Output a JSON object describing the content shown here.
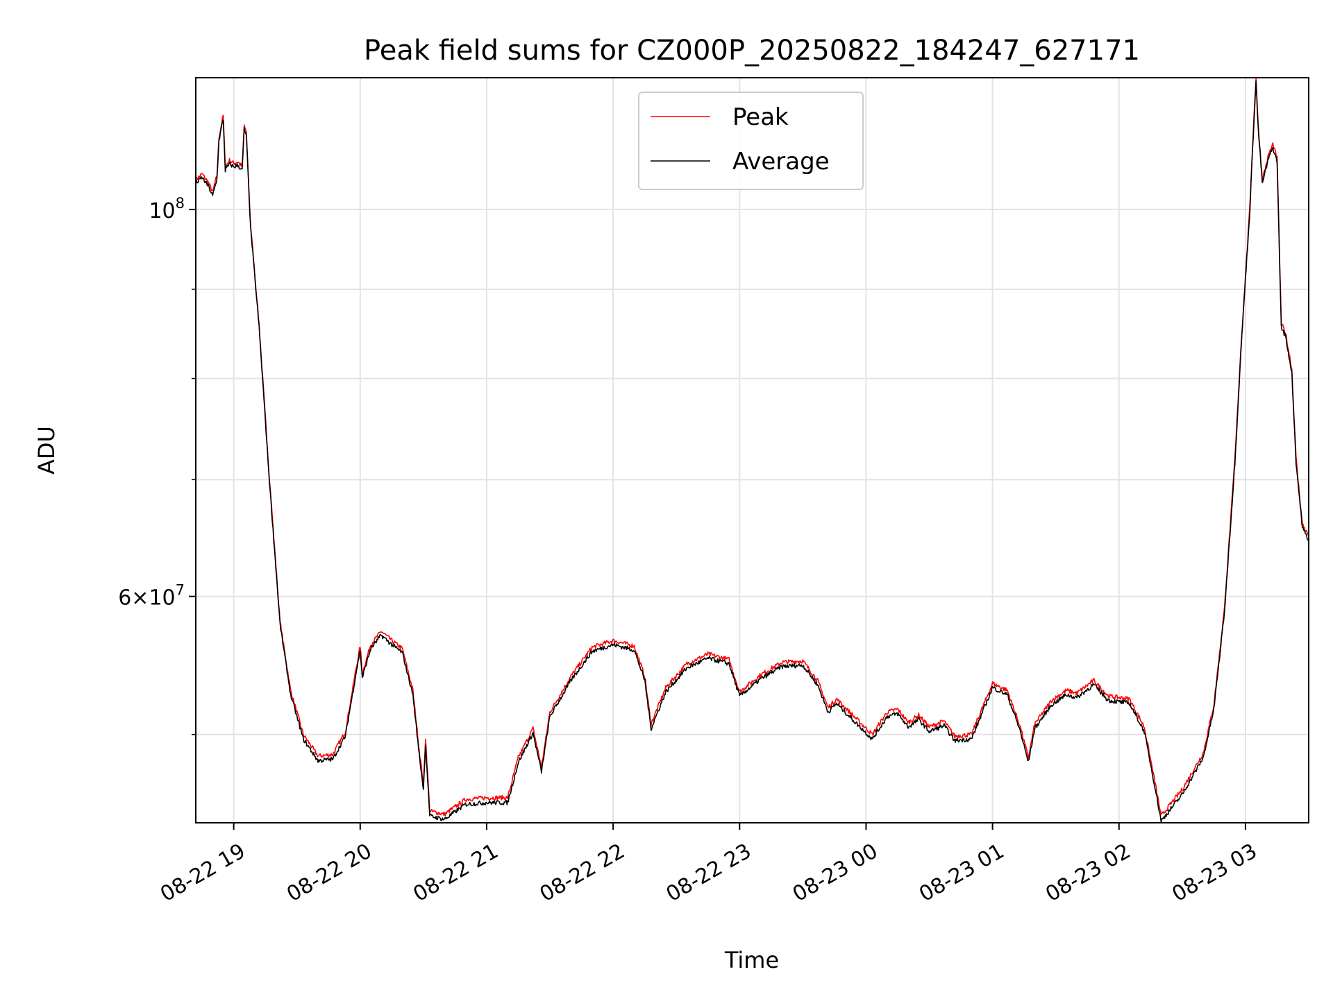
{
  "chart_data": {
    "type": "line",
    "title": "Peak field sums for CZ000P_20250822_184247_627171",
    "xlabel": "Time",
    "ylabel": "ADU",
    "y_scale": "log",
    "x_range": [
      "2025-08-22 18:42",
      "2025-08-23 03:30"
    ],
    "ylim": [
      44500000,
      119000000
    ],
    "x_ticks": [
      "08-22 19",
      "08-22 20",
      "08-22 21",
      "08-22 22",
      "08-22 23",
      "08-23 00",
      "08-23 01",
      "08-23 02",
      "08-23 03"
    ],
    "y_major_ticks": [
      {
        "value": 100000000,
        "label": "10^8"
      },
      {
        "value": 60000000,
        "label": "6×10^7"
      }
    ],
    "y_minor_ticks": [
      90000000,
      80000000,
      70000000,
      50000000
    ],
    "grid": true,
    "legend_position": "top-center",
    "series": [
      {
        "name": "Peak",
        "color": "#ff0000",
        "points": [
          [
            "2025-08-22 18:42",
            104000000
          ],
          [
            "2025-08-22 18:45",
            104800000
          ],
          [
            "2025-08-22 18:48",
            103600000
          ],
          [
            "2025-08-22 18:50",
            102300000
          ],
          [
            "2025-08-22 18:52",
            104500000
          ],
          [
            "2025-08-22 18:53",
            110000000
          ],
          [
            "2025-08-22 18:55",
            113200000
          ],
          [
            "2025-08-22 18:56",
            105800000
          ],
          [
            "2025-08-22 18:58",
            106700000
          ],
          [
            "2025-08-22 19:00",
            106300000
          ],
          [
            "2025-08-22 19:02",
            106500000
          ],
          [
            "2025-08-22 19:04",
            105800000
          ],
          [
            "2025-08-22 19:05",
            111800000
          ],
          [
            "2025-08-22 19:06",
            110500000
          ],
          [
            "2025-08-22 19:08",
            98000000
          ],
          [
            "2025-08-22 19:12",
            86000000
          ],
          [
            "2025-08-22 19:17",
            70000000
          ],
          [
            "2025-08-22 19:22",
            58000000
          ],
          [
            "2025-08-22 19:27",
            53000000
          ],
          [
            "2025-08-22 19:33",
            50000000
          ],
          [
            "2025-08-22 19:40",
            48600000
          ],
          [
            "2025-08-22 19:47",
            48700000
          ],
          [
            "2025-08-22 19:53",
            50200000
          ],
          [
            "2025-08-22 19:58",
            54500000
          ],
          [
            "2025-08-22 20:00",
            56200000
          ],
          [
            "2025-08-22 20:01",
            54200000
          ],
          [
            "2025-08-22 20:05",
            56300000
          ],
          [
            "2025-08-22 20:10",
            57300000
          ],
          [
            "2025-08-22 20:15",
            56600000
          ],
          [
            "2025-08-22 20:20",
            56000000
          ],
          [
            "2025-08-22 20:25",
            53000000
          ],
          [
            "2025-08-22 20:28",
            49000000
          ],
          [
            "2025-08-22 20:30",
            46800000
          ],
          [
            "2025-08-22 20:31",
            49800000
          ],
          [
            "2025-08-22 20:33",
            45200000
          ],
          [
            "2025-08-22 20:40",
            45000000
          ],
          [
            "2025-08-22 20:50",
            45900000
          ],
          [
            "2025-08-22 21:00",
            46000000
          ],
          [
            "2025-08-22 21:10",
            46000000
          ],
          [
            "2025-08-22 21:15",
            48500000
          ],
          [
            "2025-08-22 21:22",
            50400000
          ],
          [
            "2025-08-22 21:26",
            47900000
          ],
          [
            "2025-08-22 21:30",
            51500000
          ],
          [
            "2025-08-22 21:40",
            54000000
          ],
          [
            "2025-08-22 21:50",
            56100000
          ],
          [
            "2025-08-22 22:00",
            56600000
          ],
          [
            "2025-08-22 22:10",
            56200000
          ],
          [
            "2025-08-22 22:15",
            54000000
          ],
          [
            "2025-08-22 22:18",
            50700000
          ],
          [
            "2025-08-22 22:25",
            53200000
          ],
          [
            "2025-08-22 22:35",
            54900000
          ],
          [
            "2025-08-22 22:45",
            55600000
          ],
          [
            "2025-08-22 22:55",
            55200000
          ],
          [
            "2025-08-22 23:00",
            52900000
          ],
          [
            "2025-08-22 23:10",
            54100000
          ],
          [
            "2025-08-22 23:20",
            55000000
          ],
          [
            "2025-08-22 23:30",
            55100000
          ],
          [
            "2025-08-22 23:37",
            53700000
          ],
          [
            "2025-08-22 23:42",
            51800000
          ],
          [
            "2025-08-22 23:46",
            52400000
          ],
          [
            "2025-08-22 23:55",
            51100000
          ],
          [
            "2025-08-23 00:03",
            50000000
          ],
          [
            "2025-08-23 00:10",
            51500000
          ],
          [
            "2025-08-23 00:15",
            51700000
          ],
          [
            "2025-08-23 00:20",
            50800000
          ],
          [
            "2025-08-23 00:25",
            51300000
          ],
          [
            "2025-08-23 00:30",
            50500000
          ],
          [
            "2025-08-23 00:37",
            50900000
          ],
          [
            "2025-08-23 00:42",
            49900000
          ],
          [
            "2025-08-23 00:50",
            50000000
          ],
          [
            "2025-08-23 01:00",
            53500000
          ],
          [
            "2025-08-23 01:07",
            53000000
          ],
          [
            "2025-08-23 01:13",
            50600000
          ],
          [
            "2025-08-23 01:17",
            48500000
          ],
          [
            "2025-08-23 01:20",
            50700000
          ],
          [
            "2025-08-23 01:28",
            52300000
          ],
          [
            "2025-08-23 01:35",
            53000000
          ],
          [
            "2025-08-23 01:40",
            52800000
          ],
          [
            "2025-08-23 01:48",
            53700000
          ],
          [
            "2025-08-23 01:55",
            52600000
          ],
          [
            "2025-08-23 02:05",
            52400000
          ],
          [
            "2025-08-23 02:12",
            50500000
          ],
          [
            "2025-08-23 02:17",
            47000000
          ],
          [
            "2025-08-23 02:20",
            44900000
          ],
          [
            "2025-08-23 02:30",
            46500000
          ],
          [
            "2025-08-23 02:40",
            48800000
          ],
          [
            "2025-08-23 02:45",
            52000000
          ],
          [
            "2025-08-23 02:50",
            59000000
          ],
          [
            "2025-08-23 02:55",
            72000000
          ],
          [
            "2025-08-23 02:58",
            84000000
          ],
          [
            "2025-08-23 03:02",
            100000000
          ],
          [
            "2025-08-23 03:04",
            113000000
          ],
          [
            "2025-08-23 03:05",
            119000000
          ],
          [
            "2025-08-23 03:06",
            112000000
          ],
          [
            "2025-08-23 03:08",
            104000000
          ],
          [
            "2025-08-23 03:11",
            107500000
          ],
          [
            "2025-08-23 03:13",
            109000000
          ],
          [
            "2025-08-23 03:15",
            107000000
          ],
          [
            "2025-08-23 03:16",
            96000000
          ],
          [
            "2025-08-23 03:17",
            86000000
          ],
          [
            "2025-08-23 03:19",
            85000000
          ],
          [
            "2025-08-23 03:22",
            81000000
          ],
          [
            "2025-08-23 03:24",
            72000000
          ],
          [
            "2025-08-23 03:27",
            66000000
          ],
          [
            "2025-08-23 03:30",
            65000000
          ]
        ]
      },
      {
        "name": "Average",
        "color": "#000000",
        "points": [
          [
            "2025-08-22 18:42",
            103500000
          ],
          [
            "2025-08-22 18:45",
            104300000
          ],
          [
            "2025-08-22 18:48",
            103100000
          ],
          [
            "2025-08-22 18:50",
            101800000
          ],
          [
            "2025-08-22 18:52",
            104000000
          ],
          [
            "2025-08-22 18:53",
            109500000
          ],
          [
            "2025-08-22 18:55",
            112700000
          ],
          [
            "2025-08-22 18:56",
            105300000
          ],
          [
            "2025-08-22 18:58",
            106200000
          ],
          [
            "2025-08-22 19:00",
            105800000
          ],
          [
            "2025-08-22 19:02",
            106000000
          ],
          [
            "2025-08-22 19:04",
            105300000
          ],
          [
            "2025-08-22 19:05",
            111300000
          ],
          [
            "2025-08-22 19:06",
            110000000
          ],
          [
            "2025-08-22 19:08",
            97600000
          ],
          [
            "2025-08-22 19:12",
            85700000
          ],
          [
            "2025-08-22 19:17",
            69700000
          ],
          [
            "2025-08-22 19:22",
            57800000
          ],
          [
            "2025-08-22 19:27",
            52700000
          ],
          [
            "2025-08-22 19:33",
            49700000
          ],
          [
            "2025-08-22 19:40",
            48300000
          ],
          [
            "2025-08-22 19:47",
            48400000
          ],
          [
            "2025-08-22 19:53",
            49900000
          ],
          [
            "2025-08-22 19:58",
            54200000
          ],
          [
            "2025-08-22 20:00",
            55900000
          ],
          [
            "2025-08-22 20:01",
            53900000
          ],
          [
            "2025-08-22 20:05",
            56000000
          ],
          [
            "2025-08-22 20:10",
            57000000
          ],
          [
            "2025-08-22 20:15",
            56300000
          ],
          [
            "2025-08-22 20:20",
            55700000
          ],
          [
            "2025-08-22 20:25",
            52700000
          ],
          [
            "2025-08-22 20:28",
            48700000
          ],
          [
            "2025-08-22 20:30",
            46500000
          ],
          [
            "2025-08-22 20:31",
            49400000
          ],
          [
            "2025-08-22 20:33",
            44900000
          ],
          [
            "2025-08-22 20:40",
            44700000
          ],
          [
            "2025-08-22 20:50",
            45600000
          ],
          [
            "2025-08-22 21:00",
            45700000
          ],
          [
            "2025-08-22 21:10",
            45700000
          ],
          [
            "2025-08-22 21:15",
            48200000
          ],
          [
            "2025-08-22 21:22",
            50100000
          ],
          [
            "2025-08-22 21:26",
            47600000
          ],
          [
            "2025-08-22 21:30",
            51200000
          ],
          [
            "2025-08-22 21:40",
            53700000
          ],
          [
            "2025-08-22 21:50",
            55800000
          ],
          [
            "2025-08-22 22:00",
            56300000
          ],
          [
            "2025-08-22 22:10",
            55900000
          ],
          [
            "2025-08-22 22:15",
            53700000
          ],
          [
            "2025-08-22 22:18",
            50400000
          ],
          [
            "2025-08-22 22:25",
            52900000
          ],
          [
            "2025-08-22 22:35",
            54600000
          ],
          [
            "2025-08-22 22:45",
            55300000
          ],
          [
            "2025-08-22 22:55",
            54900000
          ],
          [
            "2025-08-22 23:00",
            52600000
          ],
          [
            "2025-08-22 23:10",
            53800000
          ],
          [
            "2025-08-22 23:20",
            54700000
          ],
          [
            "2025-08-22 23:30",
            54800000
          ],
          [
            "2025-08-22 23:37",
            53400000
          ],
          [
            "2025-08-22 23:42",
            51500000
          ],
          [
            "2025-08-22 23:46",
            52100000
          ],
          [
            "2025-08-22 23:55",
            50800000
          ],
          [
            "2025-08-23 00:03",
            49700000
          ],
          [
            "2025-08-23 00:10",
            51200000
          ],
          [
            "2025-08-23 00:15",
            51400000
          ],
          [
            "2025-08-23 00:20",
            50500000
          ],
          [
            "2025-08-23 00:25",
            51000000
          ],
          [
            "2025-08-23 00:30",
            50200000
          ],
          [
            "2025-08-23 00:37",
            50600000
          ],
          [
            "2025-08-23 00:42",
            49600000
          ],
          [
            "2025-08-23 00:50",
            49700000
          ],
          [
            "2025-08-23 01:00",
            53200000
          ],
          [
            "2025-08-23 01:07",
            52700000
          ],
          [
            "2025-08-23 01:13",
            50300000
          ],
          [
            "2025-08-23 01:17",
            48200000
          ],
          [
            "2025-08-23 01:20",
            50400000
          ],
          [
            "2025-08-23 01:28",
            52000000
          ],
          [
            "2025-08-23 01:35",
            52700000
          ],
          [
            "2025-08-23 01:40",
            52500000
          ],
          [
            "2025-08-23 01:48",
            53400000
          ],
          [
            "2025-08-23 01:55",
            52300000
          ],
          [
            "2025-08-23 02:05",
            52100000
          ],
          [
            "2025-08-23 02:12",
            50200000
          ],
          [
            "2025-08-23 02:17",
            46700000
          ],
          [
            "2025-08-23 02:20",
            44600000
          ],
          [
            "2025-08-23 02:30",
            46200000
          ],
          [
            "2025-08-23 02:40",
            48500000
          ],
          [
            "2025-08-23 02:45",
            51700000
          ],
          [
            "2025-08-23 02:50",
            58700000
          ],
          [
            "2025-08-23 02:55",
            71600000
          ],
          [
            "2025-08-23 02:58",
            83600000
          ],
          [
            "2025-08-23 03:02",
            99500000
          ],
          [
            "2025-08-23 03:04",
            112400000
          ],
          [
            "2025-08-23 03:05",
            118400000
          ],
          [
            "2025-08-23 03:06",
            111500000
          ],
          [
            "2025-08-23 03:08",
            103500000
          ],
          [
            "2025-08-23 03:11",
            107000000
          ],
          [
            "2025-08-23 03:13",
            108500000
          ],
          [
            "2025-08-23 03:15",
            106500000
          ],
          [
            "2025-08-23 03:16",
            95500000
          ],
          [
            "2025-08-23 03:17",
            85600000
          ],
          [
            "2025-08-23 03:19",
            84600000
          ],
          [
            "2025-08-23 03:22",
            80600000
          ],
          [
            "2025-08-23 03:24",
            71600000
          ],
          [
            "2025-08-23 03:27",
            65700000
          ],
          [
            "2025-08-23 03:30",
            64600000
          ]
        ]
      }
    ]
  }
}
